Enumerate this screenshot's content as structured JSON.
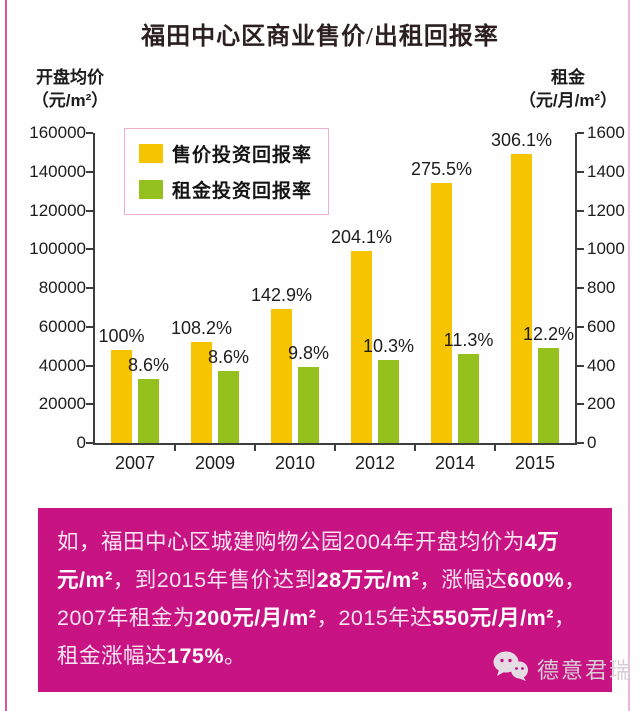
{
  "title": "福田中心区商业售价/出租回报率",
  "legend": {
    "items": [
      {
        "label": "售价投资回报率",
        "color": "#F6C400"
      },
      {
        "label": "租金投资回报率",
        "color": "#95C11F"
      }
    ]
  },
  "chart_data": {
    "type": "bar",
    "title": "福田中心区商业售价/出租回报率",
    "categories": [
      "2007",
      "2009",
      "2010",
      "2012",
      "2014",
      "2015"
    ],
    "series": [
      {
        "name": "售价投资回报率",
        "color": "#F6C400",
        "axis": "left",
        "values": [
          48000,
          52000,
          69000,
          99000,
          134000,
          149000
        ],
        "value_labels": [
          "100%",
          "108.2%",
          "142.9%",
          "204.1%",
          "275.5%",
          "306.1%"
        ]
      },
      {
        "name": "租金投资回报率",
        "color": "#95C11F",
        "axis": "right",
        "values": [
          330,
          370,
          390,
          430,
          460,
          490
        ],
        "value_labels": [
          "8.6%",
          "8.6%",
          "9.8%",
          "10.3%",
          "11.3%",
          "12.2%"
        ]
      }
    ],
    "left_axis": {
      "title_line1": "开盘均价",
      "title_line2": "（元/m²）",
      "min": 0,
      "max": 160000,
      "ticks": [
        160000,
        140000,
        120000,
        100000,
        80000,
        60000,
        40000,
        20000,
        0
      ]
    },
    "right_axis": {
      "title_line1": "租金",
      "title_line2": "（元/月/m²）",
      "min": 0,
      "max": 1600,
      "ticks": [
        1600,
        1400,
        1200,
        1000,
        800,
        600,
        400,
        200,
        0
      ]
    },
    "grid": false,
    "legend_position": "top-left-inside"
  },
  "note": {
    "bg_color": "#C81483",
    "segments": [
      {
        "t": "如，福田中心区城建购物公园2004年开盘均价为",
        "b": false
      },
      {
        "t": "4万元/m²",
        "b": true
      },
      {
        "t": "，到2015年售价达到",
        "b": false
      },
      {
        "t": "28万元/m²",
        "b": true
      },
      {
        "t": "，涨幅达",
        "b": false
      },
      {
        "t": "600%",
        "b": true
      },
      {
        "t": "，2007年租金为",
        "b": false
      },
      {
        "t": "200元/月/m²",
        "b": true
      },
      {
        "t": "，2015年达",
        "b": false
      },
      {
        "t": "550元/月/m²",
        "b": true
      },
      {
        "t": "，租金涨幅达",
        "b": false
      },
      {
        "t": "175%",
        "b": true
      },
      {
        "t": "。",
        "b": false
      }
    ]
  },
  "watermark": {
    "text": "德意君瑞",
    "icon": "wechat-icon"
  }
}
